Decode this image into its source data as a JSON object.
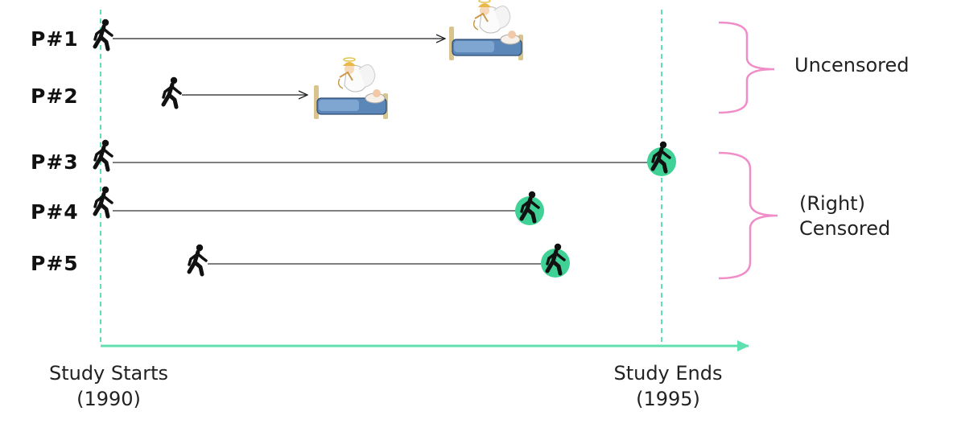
{
  "participants": [
    {
      "label": "P#1",
      "outcome": "died"
    },
    {
      "label": "P#2",
      "outcome": "died"
    },
    {
      "label": "P#3",
      "outcome": "alive"
    },
    {
      "label": "P#4",
      "outcome": "alive"
    },
    {
      "label": "P#5",
      "outcome": "alive"
    }
  ],
  "groups": {
    "uncensored": "Uncensored",
    "censored_line1": "(Right)",
    "censored_line2": "Censored"
  },
  "axis": {
    "start_label": "Study Starts",
    "start_year": "(1990)",
    "end_label": "Study Ends",
    "end_year": "(1995)"
  },
  "colors": {
    "study_line": "#5fe0b0",
    "bracket": "#f08cc8",
    "censor_circle": "#3fd195",
    "arrow": "#222222"
  },
  "icons": {
    "walker": "walking-person-icon",
    "death": "bed-with-angel-icon"
  }
}
